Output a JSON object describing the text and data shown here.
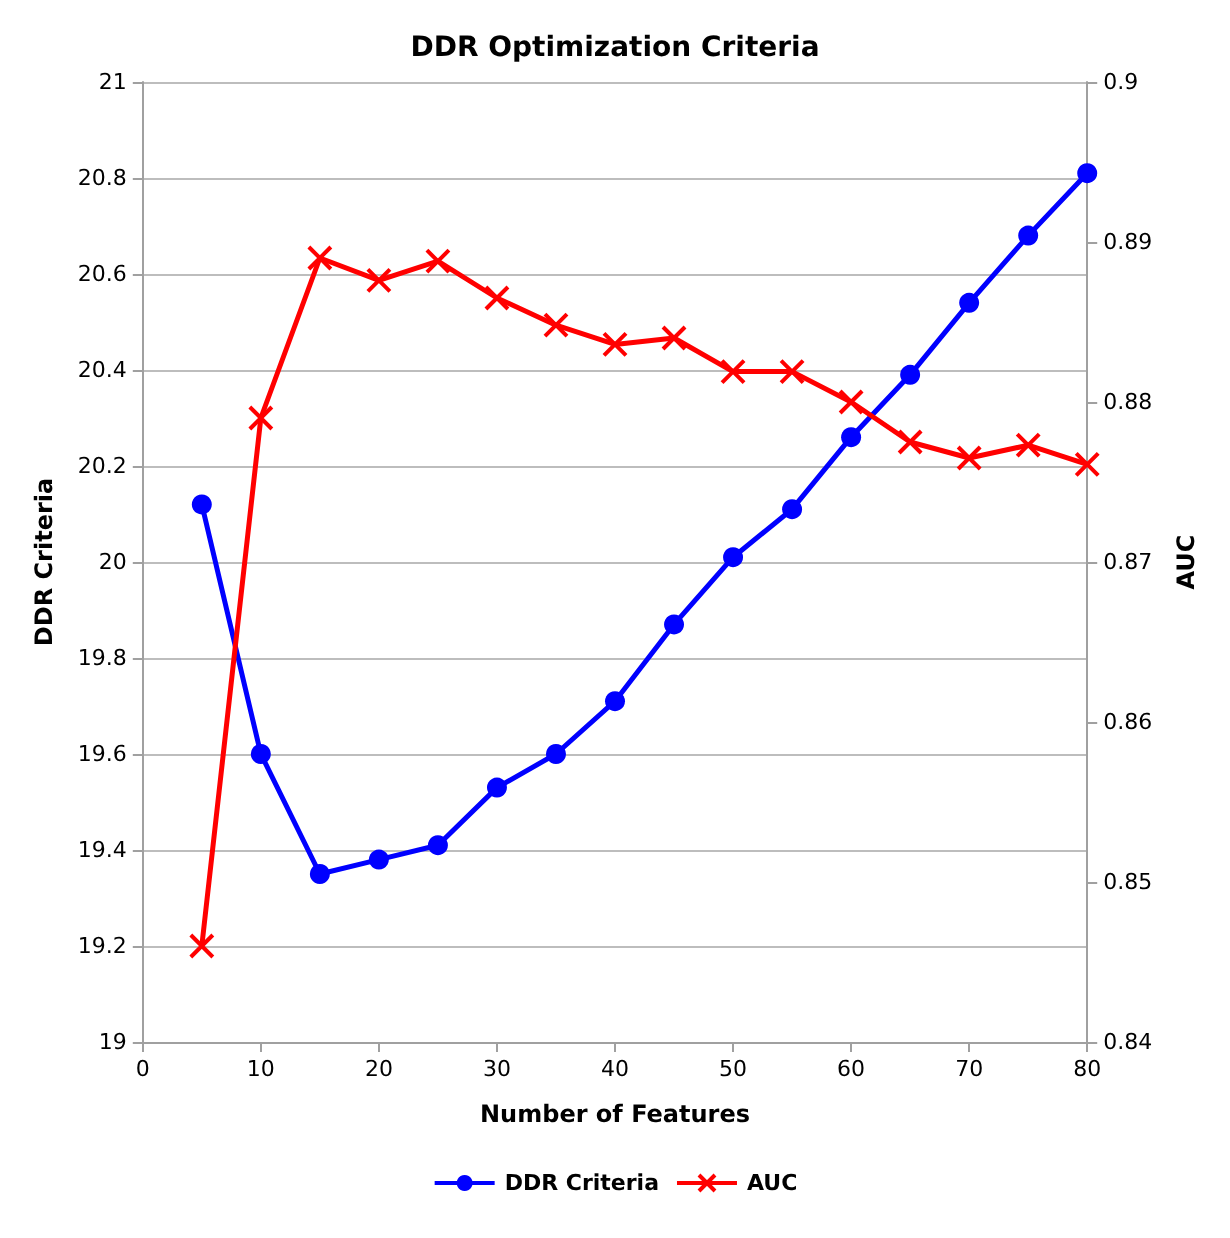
{
  "chart_data": {
    "type": "line",
    "title": "DDR Optimization Criteria",
    "xlabel": "Number of Features",
    "ylabel": "DDR Criteria",
    "y2label": "AUC",
    "x": [
      5,
      10,
      15,
      20,
      25,
      30,
      35,
      40,
      45,
      50,
      55,
      60,
      65,
      70,
      75,
      80
    ],
    "series": [
      {
        "name": "DDR Criteria",
        "color": "#0000ff",
        "marker": "circle",
        "values": [
          20.12,
          19.6,
          19.35,
          19.38,
          19.41,
          19.53,
          19.6,
          19.71,
          19.87,
          20.01,
          20.11,
          20.26,
          20.39,
          20.54,
          20.68,
          20.81
        ]
      },
      {
        "name": "AUC",
        "color": "#ff0000",
        "marker": "cross",
        "axis": "y2",
        "values": [
          0.846,
          0.879,
          0.889,
          0.8876,
          0.8888,
          0.8865,
          0.8848,
          0.8836,
          0.884,
          0.8819,
          0.8819,
          0.88,
          0.8775,
          0.8765,
          0.8773,
          0.8761
        ]
      }
    ],
    "xlim": [
      0,
      80
    ],
    "xticks": [
      0,
      10,
      20,
      30,
      40,
      50,
      60,
      70,
      80
    ],
    "ylim": [
      19,
      21
    ],
    "yticks": [
      19,
      19.2,
      19.4,
      19.6,
      19.8,
      20,
      20.2,
      20.4,
      20.6,
      20.8,
      21
    ],
    "y2lim": [
      0.84,
      0.9
    ],
    "y2ticks": [
      0.84,
      0.85,
      0.86,
      0.87,
      0.88,
      0.89,
      0.9
    ],
    "grid": "y",
    "legend": "bottom",
    "line_style": "solid"
  }
}
